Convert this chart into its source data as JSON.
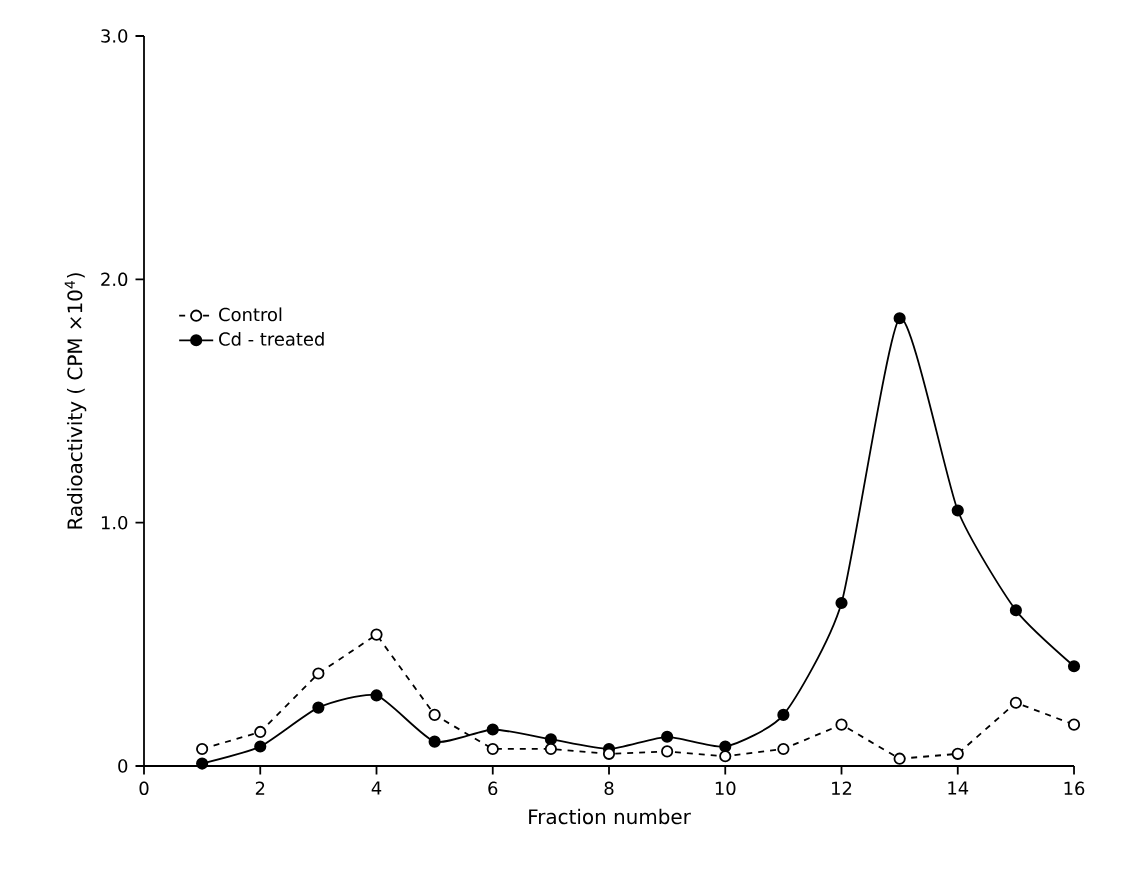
{
  "chart_data": {
    "type": "line",
    "xlabel": "Fraction number",
    "ylabel": "Radioactivity ( CPM ×10$^{4}$)",
    "x": [
      1,
      2,
      3,
      4,
      5,
      6,
      7,
      8,
      9,
      10,
      11,
      12,
      13,
      14,
      15,
      16
    ],
    "series": [
      {
        "name": "Control",
        "color": "#000000",
        "line_style": "dashed",
        "values": [
          0.07,
          0.14,
          0.38,
          0.54,
          0.21,
          0.07,
          0.07,
          0.05,
          0.06,
          0.04,
          0.07,
          0.17,
          0.03,
          0.05,
          0.26,
          0.17
        ]
      },
      {
        "name": "Cd - treated",
        "color": "#000000",
        "line_style": "solid",
        "values": [
          0.01,
          0.08,
          0.24,
          0.29,
          0.1,
          0.15,
          0.11,
          0.07,
          0.12,
          0.08,
          0.21,
          0.67,
          1.84,
          1.05,
          0.64,
          0.41
        ]
      }
    ],
    "marker": "circle",
    "legend": "left",
    "grid": false,
    "xlim": [
      0,
      16
    ],
    "xticks": [
      0,
      2,
      4,
      6,
      8,
      10,
      12,
      14,
      16
    ],
    "ylim": [
      0,
      3
    ],
    "yticks": [
      0,
      {
        "value": 1,
        "label": "1.0"
      },
      {
        "value": 2,
        "label": "2.0"
      },
      {
        "value": 3,
        "label": "3.0"
      }
    ]
  }
}
